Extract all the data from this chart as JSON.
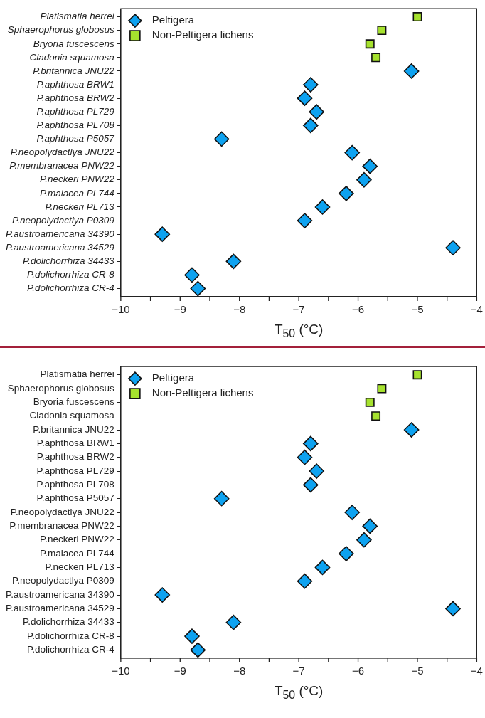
{
  "chart_data": [
    {
      "type": "scatter",
      "orientation": "horizontal",
      "xlabel": "T$_{50}$ (°C)",
      "legend": "top left",
      "xlim": [
        -10,
        -4
      ],
      "xticks": [
        -10,
        {
          "value": -9.5,
          "label": null
        },
        -9,
        {
          "value": -8.5,
          "label": null
        },
        -8,
        {
          "value": -7.5,
          "label": null
        },
        -7,
        {
          "value": -6.5,
          "label": null
        },
        -6,
        {
          "value": -5.5,
          "label": null
        },
        -5,
        {
          "value": -4.5,
          "label": null
        },
        -4
      ],
      "categories": [
        "Platismatia herrei",
        "Sphaerophorus globosus",
        "Bryoria fuscescens",
        "Cladonia squamosa",
        "P.britannica JNU22",
        "P.aphthosa BRW1",
        "P.aphthosa BRW2",
        "P.aphthosa PL729",
        "P.aphthosa PL708",
        "P.aphthosa P5057",
        "P.neopolydactlya JNU22",
        "P.membranacea PNW22",
        "P.neckeri PNW22",
        "P.malacea PL744",
        "P.neckeri PL713",
        "P.neopolydactlya P0309",
        "P.austroamericana 34390",
        "P.austroamericana 34529",
        "P.dolichorrhiza 34433",
        "P.dolichorrhiza CR-8",
        "P.dolichorrhiza CR-4"
      ],
      "series": [
        {
          "name": "Peltigera",
          "color": "#0ea2f0",
          "marker": "diamond",
          "values": [
            null,
            null,
            null,
            null,
            -5.1,
            -6.8,
            -6.9,
            -6.7,
            -6.8,
            -8.3,
            -6.1,
            -5.8,
            -5.9,
            -6.2,
            -6.6,
            -6.9,
            -9.3,
            -4.4,
            -8.1,
            -8.8,
            -8.7
          ]
        },
        {
          "name": "Non-Peltigera lichens",
          "color": "#a6e22e",
          "marker": "square",
          "values": [
            -5.0,
            -5.6,
            -5.8,
            -5.7,
            null,
            null,
            null,
            null,
            null,
            null,
            null,
            null,
            null,
            null,
            null,
            null,
            null,
            null,
            null,
            null,
            null
          ]
        }
      ]
    },
    {
      "type": "scatter",
      "orientation": "horizontal",
      "xlabel": "T$_{50}$ (°C)",
      "legend": "top left",
      "xlim": [
        -10,
        -4
      ],
      "xticks": [
        -10,
        {
          "value": -9.5,
          "label": null
        },
        -9,
        {
          "value": -8.5,
          "label": null
        },
        -8,
        {
          "value": -7.5,
          "label": null
        },
        -7,
        {
          "value": -6.5,
          "label": null
        },
        -6,
        {
          "value": -5.5,
          "label": null
        },
        -5,
        {
          "value": -4.5,
          "label": null
        },
        -4
      ],
      "categories": [
        "Platismatia herrei",
        "Sphaerophorus globosus",
        "Bryoria fuscescens",
        "Cladonia squamosa",
        "P.britannica JNU22",
        "P.aphthosa BRW1",
        "P.aphthosa BRW2",
        "P.aphthosa PL729",
        "P.aphthosa PL708",
        "P.aphthosa P5057",
        "P.neopolydactlya JNU22",
        "P.membranacea PNW22",
        "P.neckeri PNW22",
        "P.malacea PL744",
        "P.neckeri PL713",
        "P.neopolydactlya P0309",
        "P.austroamericana 34390",
        "P.austroamericana 34529",
        "P.dolichorrhiza 34433",
        "P.dolichorrhiza CR-8",
        "P.dolichorrhiza CR-4"
      ],
      "series": [
        {
          "name": "Peltigera",
          "color": "#0ea2f0",
          "marker": "diamond",
          "values": [
            null,
            null,
            null,
            null,
            -5.1,
            -6.8,
            -6.9,
            -6.7,
            -6.8,
            -8.3,
            -6.1,
            -5.8,
            -5.9,
            -6.2,
            -6.6,
            -6.9,
            -9.3,
            -4.4,
            -8.1,
            -8.8,
            -8.7
          ]
        },
        {
          "name": "Non-Peltigera lichens",
          "color": "#a6e22e",
          "marker": "square",
          "values": [
            -5.0,
            -5.6,
            -5.8,
            -5.7,
            null,
            null,
            null,
            null,
            null,
            null,
            null,
            null,
            null,
            null,
            null,
            null,
            null,
            null,
            null,
            null,
            null
          ]
        }
      ]
    }
  ]
}
